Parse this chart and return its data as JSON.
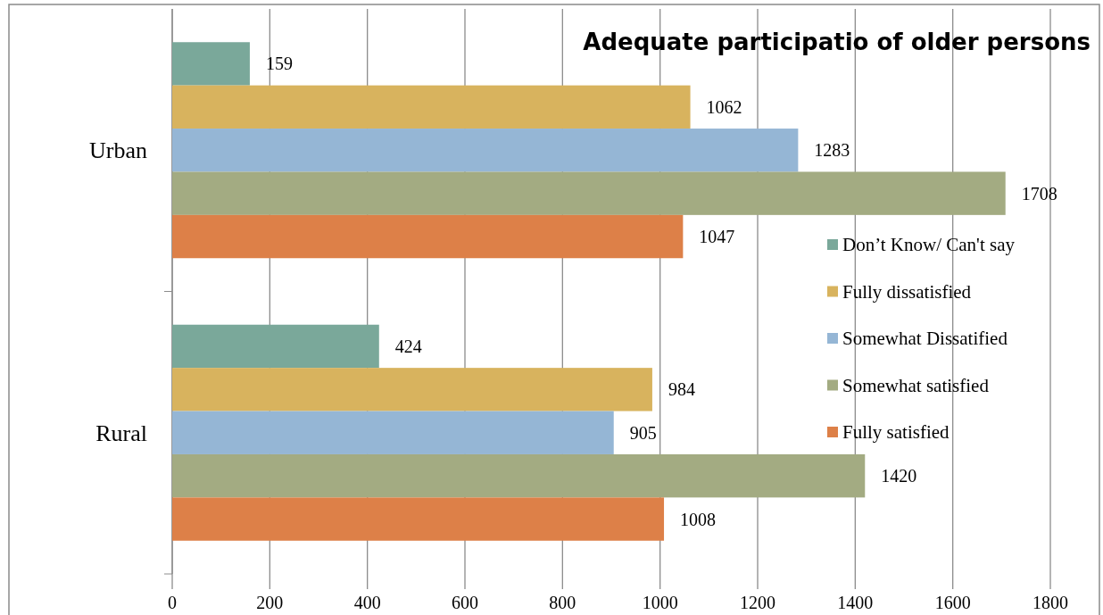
{
  "chart_data": {
    "type": "bar",
    "orientation": "horizontal",
    "title": "Adequate participatio of older persons",
    "categories": [
      "Urban",
      "Rural"
    ],
    "series": [
      {
        "name": "Don’t Know/ Can't say",
        "color": "#7aa89a",
        "values": [
          159,
          424
        ]
      },
      {
        "name": "Fully dissatisfied",
        "color": "#d8b35e",
        "values": [
          1062,
          984
        ]
      },
      {
        "name": "Somewhat Dissatified",
        "color": "#95b6d5",
        "values": [
          1283,
          905
        ]
      },
      {
        "name": "Somewhat satisfied",
        "color": "#a3ab82",
        "values": [
          1708,
          1420
        ]
      },
      {
        "name": "Fully satisfied",
        "color": "#dd8048",
        "values": [
          1047,
          1008
        ]
      }
    ],
    "xlim": [
      0,
      1800
    ],
    "xticks": [
      0,
      200,
      400,
      600,
      800,
      1000,
      1200,
      1400,
      1600,
      1800
    ],
    "grid": "x",
    "legend": "right",
    "data_labels": true
  }
}
